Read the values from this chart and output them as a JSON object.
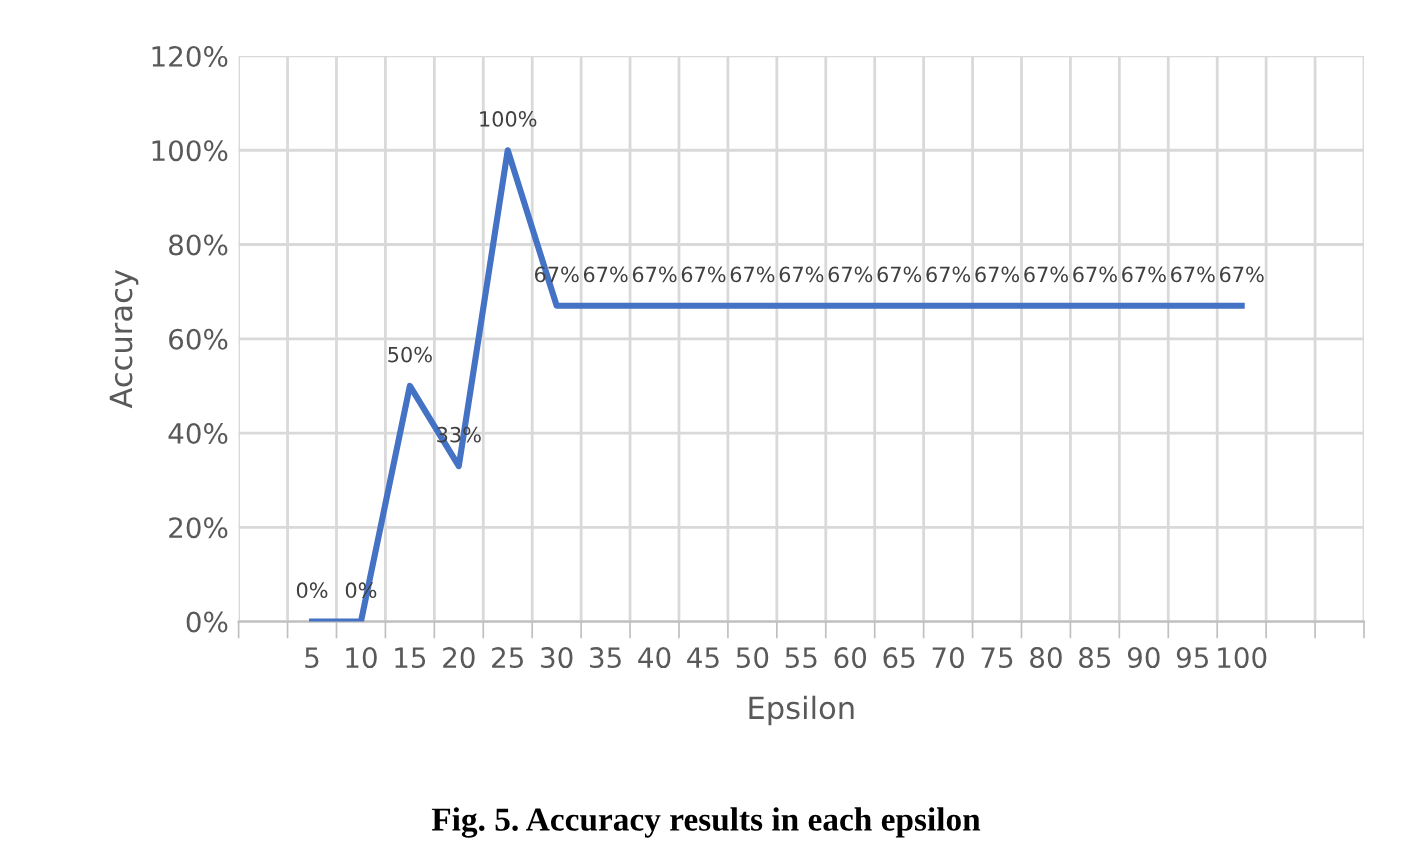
{
  "chart_data": {
    "type": "line",
    "title": "Fig. 5. Accuracy results in each epsilon",
    "xlabel": "Epsilon",
    "ylabel": "Accuracy",
    "categories": [
      null,
      "5",
      "10",
      "15",
      "20",
      "25",
      "30",
      "35",
      "40",
      "45",
      "50",
      "55",
      "60",
      "65",
      "70",
      "75",
      "80",
      "85",
      "90",
      "95",
      "100",
      null,
      null
    ],
    "series": [
      {
        "color": "#4472c4",
        "values": [
          null,
          0,
          0,
          50,
          33,
          100,
          67,
          67,
          67,
          67,
          67,
          67,
          67,
          67,
          67,
          67,
          67,
          67,
          67,
          67,
          67,
          null,
          null
        ],
        "value_labels": [
          null,
          "0%",
          "0%",
          "50%",
          "33%",
          "100%",
          "67%",
          "67%",
          "67%",
          "67%",
          "67%",
          "67%",
          "67%",
          "67%",
          "67%",
          "67%",
          "67%",
          "67%",
          "67%",
          "67%",
          "67%",
          null,
          null
        ]
      }
    ],
    "ylim": [
      0,
      120
    ],
    "yticks": [
      {
        "value": 0,
        "label": "0%"
      },
      {
        "value": 20,
        "label": "20%"
      },
      {
        "value": 40,
        "label": "40%"
      },
      {
        "value": 60,
        "label": "60%"
      },
      {
        "value": 80,
        "label": "80%"
      },
      {
        "value": 100,
        "label": "100%"
      },
      {
        "value": 120,
        "label": "120%"
      }
    ],
    "grid": true,
    "marker": "none",
    "line_style": "solid",
    "legend": false
  }
}
